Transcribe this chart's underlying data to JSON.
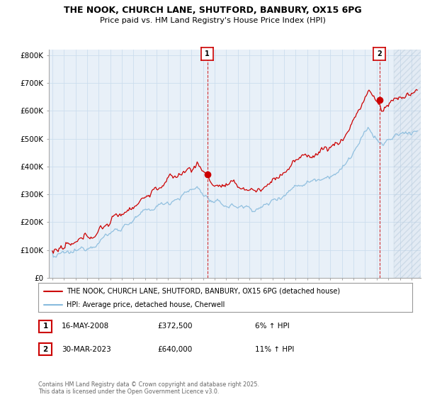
{
  "title": "THE NOOK, CHURCH LANE, SHUTFORD, BANBURY, OX15 6PG",
  "subtitle": "Price paid vs. HM Land Registry's House Price Index (HPI)",
  "ylabel_ticks": [
    "£0",
    "£100K",
    "£200K",
    "£300K",
    "£400K",
    "£500K",
    "£600K",
    "£700K",
    "£800K"
  ],
  "ytick_vals": [
    0,
    100000,
    200000,
    300000,
    400000,
    500000,
    600000,
    700000,
    800000
  ],
  "ylim": [
    0,
    820000
  ],
  "xlim_start": 1994.7,
  "xlim_end": 2026.8,
  "xticks": [
    1995,
    1996,
    1997,
    1998,
    1999,
    2000,
    2001,
    2002,
    2003,
    2004,
    2005,
    2006,
    2007,
    2008,
    2009,
    2010,
    2011,
    2012,
    2013,
    2014,
    2015,
    2016,
    2017,
    2018,
    2019,
    2020,
    2021,
    2022,
    2023,
    2024,
    2025,
    2026
  ],
  "property_color": "#cc0000",
  "hpi_color": "#88bbdd",
  "marker1_x": 2008.37,
  "marker1_y": 372500,
  "marker2_x": 2023.24,
  "marker2_y": 640000,
  "legend_property": "THE NOOK, CHURCH LANE, SHUTFORD, BANBURY, OX15 6PG (detached house)",
  "legend_hpi": "HPI: Average price, detached house, Cherwell",
  "marker1_date": "16-MAY-2008",
  "marker1_price": "£372,500",
  "marker1_hpi": "6% ↑ HPI",
  "marker2_date": "30-MAR-2023",
  "marker2_price": "£640,000",
  "marker2_hpi": "11% ↑ HPI",
  "footnote": "Contains HM Land Registry data © Crown copyright and database right 2025.\nThis data is licensed under the Open Government Licence v3.0.",
  "background_color": "#ffffff",
  "grid_color": "#ccddee",
  "plot_bg_color": "#e8f0f8",
  "hatch_start": 2024.5
}
